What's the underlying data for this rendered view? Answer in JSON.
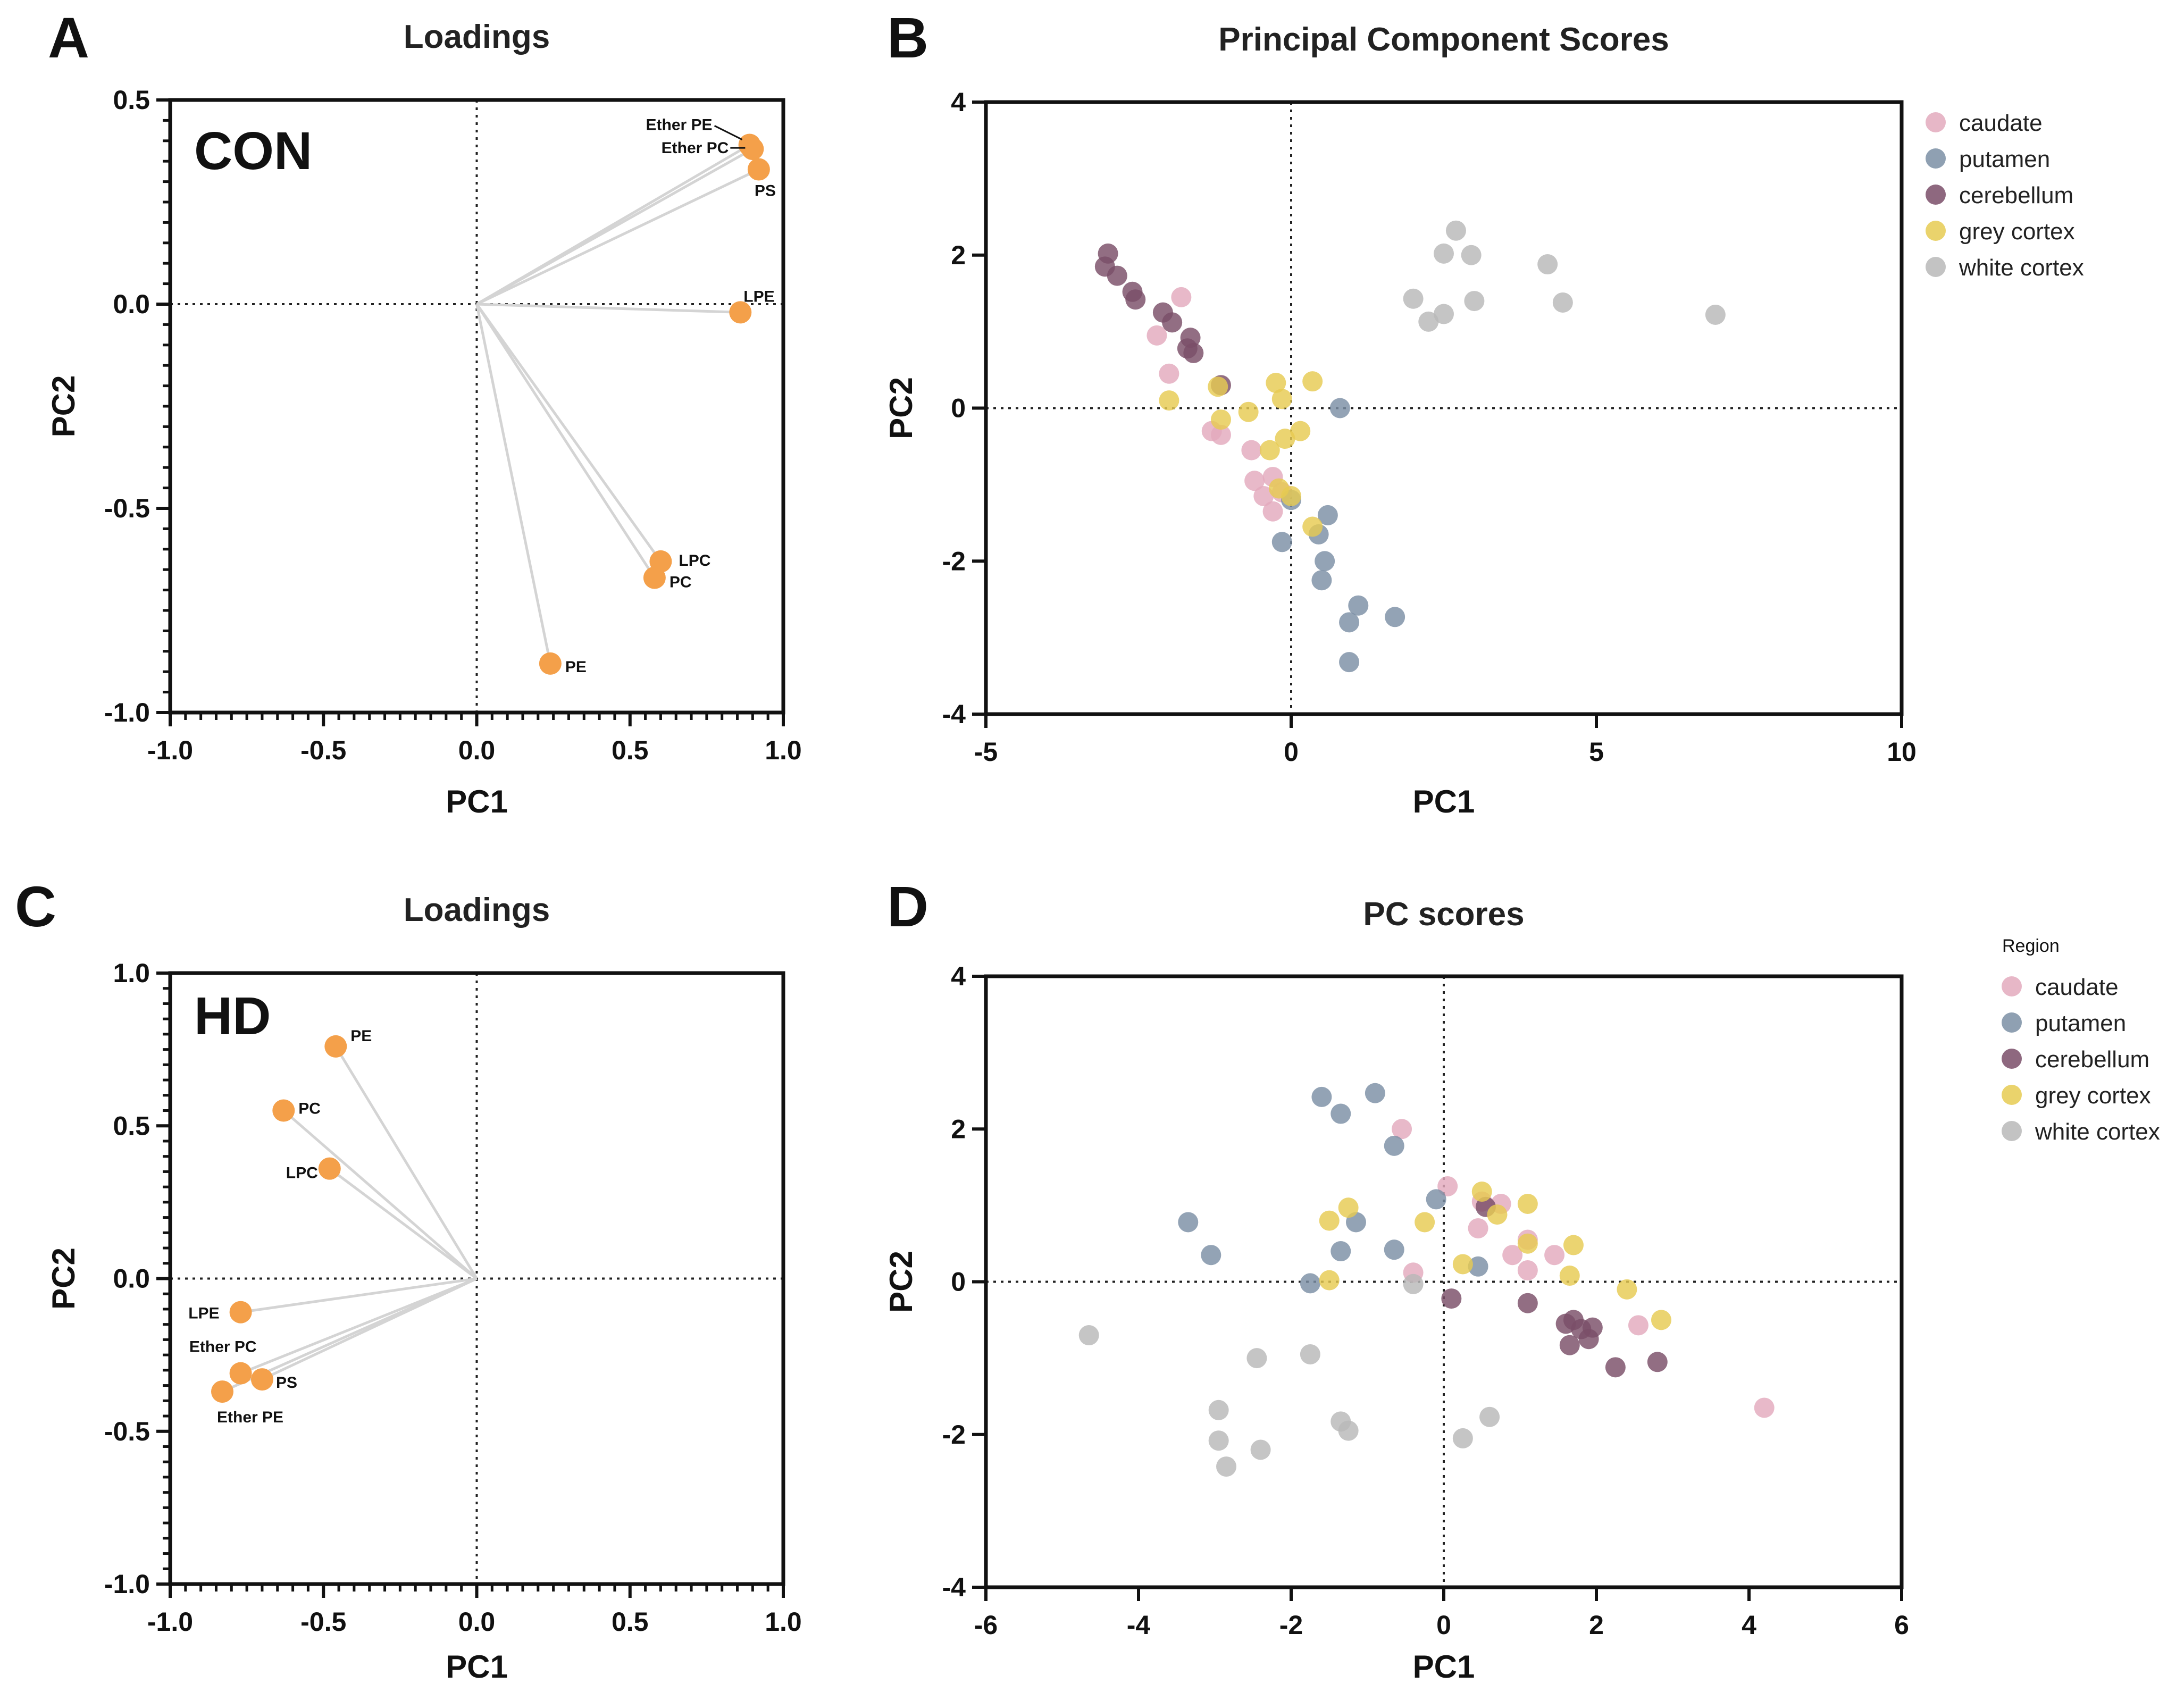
{
  "colors": {
    "loading_point": "#F4A04A",
    "vector_line": "#D4D4D4",
    "caudate": "#E3AABD",
    "putamen": "#7B8FA5",
    "cerebellum": "#7A4E68",
    "grey cortex": "#E6CB52",
    "white cortex": "#B8B8B8"
  },
  "chart_data": [
    {
      "panel": "A",
      "type": "scatter",
      "title": "Loadings",
      "group_label": "CON",
      "xlabel": "PC1",
      "ylabel": "PC2",
      "xlim": [
        -1.0,
        1.0
      ],
      "ylim": [
        -1.0,
        0.5
      ],
      "xticks": [
        -1.0,
        -0.5,
        0.0,
        0.5,
        1.0
      ],
      "yticks": [
        -1.0,
        -0.5,
        0.0,
        0.5
      ],
      "tick_labels_x": [
        "-1.0",
        "-0.5",
        "0.0",
        "0.5",
        "1.0"
      ],
      "tick_labels_y": [
        "-1.0",
        "-0.5",
        "0.0",
        "0.5"
      ],
      "loadings": [
        {
          "name": "Ether PE",
          "x": 0.89,
          "y": 0.39
        },
        {
          "name": "Ether PC",
          "x": 0.9,
          "y": 0.38
        },
        {
          "name": "PS",
          "x": 0.92,
          "y": 0.33
        },
        {
          "name": "LPE",
          "x": 0.86,
          "y": -0.02
        },
        {
          "name": "LPC",
          "x": 0.6,
          "y": -0.63
        },
        {
          "name": "PC",
          "x": 0.58,
          "y": -0.67
        },
        {
          "name": "PE",
          "x": 0.24,
          "y": -0.88
        }
      ]
    },
    {
      "panel": "B",
      "type": "scatter",
      "title": "Principal Component Scores",
      "xlabel": "PC1",
      "ylabel": "PC2",
      "xlim": [
        -5,
        10
      ],
      "ylim": [
        -4,
        4
      ],
      "xticks": [
        -5,
        0,
        5,
        10
      ],
      "yticks": [
        -4,
        -2,
        0,
        2,
        4
      ],
      "tick_labels_x": [
        "-5",
        "0",
        "5",
        "10"
      ],
      "tick_labels_y": [
        "-4",
        "-2",
        "0",
        "2",
        "4"
      ],
      "legend_title": "",
      "legend_position": "right",
      "series": [
        {
          "name": "caudate",
          "points": [
            [
              -1.8,
              1.45
            ],
            [
              -2.2,
              0.95
            ],
            [
              -2.0,
              0.45
            ],
            [
              -1.3,
              -0.3
            ],
            [
              -1.15,
              -0.35
            ],
            [
              -0.65,
              -0.55
            ],
            [
              -0.6,
              -0.95
            ],
            [
              -0.45,
              -1.15
            ],
            [
              -0.3,
              -0.9
            ],
            [
              -0.3,
              -1.35
            ],
            [
              -0.15,
              -1.1
            ]
          ]
        },
        {
          "name": "putamen",
          "points": [
            [
              0.8,
              0.0
            ],
            [
              -0.15,
              -1.75
            ],
            [
              0.0,
              -1.2
            ],
            [
              0.45,
              -1.65
            ],
            [
              0.6,
              -1.4
            ],
            [
              0.55,
              -2.0
            ],
            [
              0.5,
              -2.25
            ],
            [
              0.95,
              -2.8
            ],
            [
              1.1,
              -2.58
            ],
            [
              1.7,
              -2.73
            ],
            [
              0.95,
              -3.32
            ]
          ]
        },
        {
          "name": "cerebellum",
          "points": [
            [
              -3.0,
              2.02
            ],
            [
              -3.05,
              1.85
            ],
            [
              -2.85,
              1.73
            ],
            [
              -2.6,
              1.52
            ],
            [
              -2.55,
              1.42
            ],
            [
              -2.1,
              1.25
            ],
            [
              -1.95,
              1.12
            ],
            [
              -1.65,
              0.92
            ],
            [
              -1.7,
              0.78
            ],
            [
              -1.6,
              0.72
            ],
            [
              -1.15,
              0.3
            ]
          ]
        },
        {
          "name": "grey cortex",
          "points": [
            [
              -2.0,
              0.1
            ],
            [
              -1.2,
              0.28
            ],
            [
              -0.25,
              0.33
            ],
            [
              0.35,
              0.35
            ],
            [
              -0.15,
              0.12
            ],
            [
              -0.7,
              -0.05
            ],
            [
              -1.15,
              -0.15
            ],
            [
              -0.35,
              -0.55
            ],
            [
              -0.1,
              -0.4
            ],
            [
              0.15,
              -0.3
            ],
            [
              -0.2,
              -1.05
            ],
            [
              0.0,
              -1.15
            ],
            [
              0.35,
              -1.55
            ]
          ]
        },
        {
          "name": "white cortex",
          "points": [
            [
              2.0,
              1.43
            ],
            [
              2.25,
              1.13
            ],
            [
              2.5,
              1.23
            ],
            [
              2.5,
              2.02
            ],
            [
              2.7,
              2.32
            ],
            [
              2.95,
              2.0
            ],
            [
              3.0,
              1.4
            ],
            [
              4.2,
              1.88
            ],
            [
              4.45,
              1.38
            ],
            [
              6.95,
              1.22
            ]
          ]
        }
      ]
    },
    {
      "panel": "C",
      "type": "scatter",
      "title": "Loadings",
      "group_label": "HD",
      "xlabel": "PC1",
      "ylabel": "PC2",
      "xlim": [
        -1.0,
        1.0
      ],
      "ylim": [
        -1.0,
        1.0
      ],
      "xticks": [
        -1.0,
        -0.5,
        0.0,
        0.5,
        1.0
      ],
      "yticks": [
        -1.0,
        -0.5,
        0.0,
        0.5,
        1.0
      ],
      "tick_labels_x": [
        "-1.0",
        "-0.5",
        "0.0",
        "0.5",
        "1.0"
      ],
      "tick_labels_y": [
        "-1.0",
        "-0.5",
        "0.0",
        "0.5",
        "1.0"
      ],
      "loadings": [
        {
          "name": "PE",
          "x": -0.46,
          "y": 0.76
        },
        {
          "name": "PC",
          "x": -0.63,
          "y": 0.55
        },
        {
          "name": "LPC",
          "x": -0.48,
          "y": 0.36
        },
        {
          "name": "LPE",
          "x": -0.77,
          "y": -0.11
        },
        {
          "name": "Ether PC",
          "x": -0.77,
          "y": -0.31
        },
        {
          "name": "PS",
          "x": -0.7,
          "y": -0.33
        },
        {
          "name": "Ether PE",
          "x": -0.83,
          "y": -0.37
        }
      ]
    },
    {
      "panel": "D",
      "type": "scatter",
      "title": "PC scores",
      "xlabel": "PC1",
      "ylabel": "PC2",
      "xlim": [
        -6,
        6
      ],
      "ylim": [
        -4,
        4
      ],
      "xticks": [
        -6,
        -4,
        -2,
        0,
        2,
        4,
        6
      ],
      "yticks": [
        -4,
        -2,
        0,
        2,
        4
      ],
      "tick_labels_x": [
        "-6",
        "-4",
        "-2",
        "0",
        "2",
        "4",
        "6"
      ],
      "tick_labels_y": [
        "-4",
        "-2",
        "0",
        "2",
        "4"
      ],
      "legend_title": "Region",
      "legend_position": "right",
      "series": [
        {
          "name": "caudate",
          "points": [
            [
              -0.55,
              2.0
            ],
            [
              0.05,
              1.25
            ],
            [
              0.5,
              1.05
            ],
            [
              0.75,
              1.02
            ],
            [
              0.45,
              0.7
            ],
            [
              1.1,
              0.55
            ],
            [
              0.9,
              0.35
            ],
            [
              1.1,
              0.15
            ],
            [
              1.45,
              0.35
            ],
            [
              -0.4,
              0.12
            ],
            [
              2.55,
              -0.57
            ],
            [
              4.2,
              -1.65
            ]
          ]
        },
        {
          "name": "putamen",
          "points": [
            [
              -1.6,
              2.42
            ],
            [
              -1.35,
              2.2
            ],
            [
              -0.9,
              2.47
            ],
            [
              -0.65,
              1.78
            ],
            [
              -0.1,
              1.08
            ],
            [
              -1.15,
              0.78
            ],
            [
              -3.35,
              0.78
            ],
            [
              -3.05,
              0.35
            ],
            [
              -1.35,
              0.4
            ],
            [
              -0.65,
              0.42
            ],
            [
              -1.75,
              -0.02
            ],
            [
              0.45,
              0.2
            ]
          ]
        },
        {
          "name": "cerebellum",
          "points": [
            [
              0.55,
              0.98
            ],
            [
              0.1,
              -0.22
            ],
            [
              1.1,
              -0.28
            ],
            [
              1.6,
              -0.55
            ],
            [
              1.8,
              -0.62
            ],
            [
              1.7,
              -0.5
            ],
            [
              1.65,
              -0.83
            ],
            [
              1.95,
              -0.6
            ],
            [
              1.9,
              -0.75
            ],
            [
              2.25,
              -1.12
            ],
            [
              2.8,
              -1.05
            ]
          ]
        },
        {
          "name": "grey cortex",
          "points": [
            [
              -1.25,
              0.97
            ],
            [
              -1.5,
              0.8
            ],
            [
              -0.25,
              0.78
            ],
            [
              0.5,
              1.18
            ],
            [
              0.7,
              0.88
            ],
            [
              1.1,
              1.02
            ],
            [
              1.1,
              0.5
            ],
            [
              1.7,
              0.48
            ],
            [
              1.65,
              0.08
            ],
            [
              2.4,
              -0.1
            ],
            [
              2.85,
              -0.5
            ],
            [
              0.25,
              0.23
            ],
            [
              -1.5,
              0.02
            ]
          ]
        },
        {
          "name": "white cortex",
          "points": [
            [
              -4.65,
              -0.7
            ],
            [
              -2.45,
              -1.0
            ],
            [
              -1.75,
              -0.95
            ],
            [
              -2.95,
              -1.68
            ],
            [
              -2.95,
              -2.08
            ],
            [
              -2.85,
              -2.42
            ],
            [
              -2.4,
              -2.2
            ],
            [
              -1.35,
              -1.83
            ],
            [
              -1.25,
              -1.95
            ],
            [
              0.25,
              -2.05
            ],
            [
              0.6,
              -1.77
            ],
            [
              -0.4,
              -0.03
            ]
          ]
        }
      ]
    }
  ],
  "panel_letters": [
    "A",
    "B",
    "C",
    "D"
  ]
}
